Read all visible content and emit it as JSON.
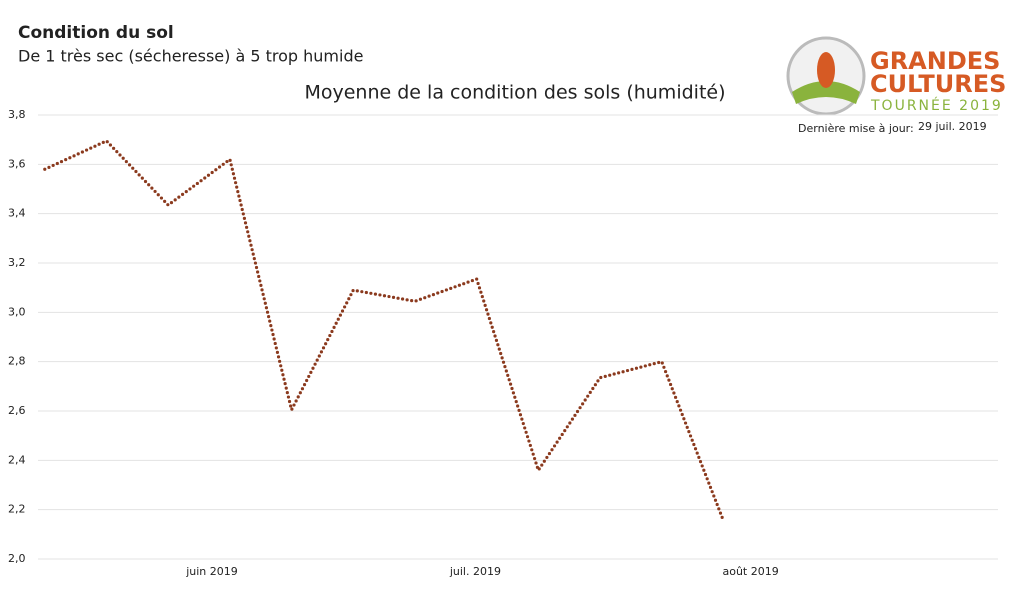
{
  "chart_data": {
    "type": "line",
    "title": "Condition du sol",
    "subtitle": "De 1 très sec (sécheresse) à 5 trop humide",
    "chart_title": "Moyenne de la condition des sols (humidité)",
    "annotations": [
      "GRANDES",
      "CULTURES",
      "TOURNÉE 2019",
      "Dernière mise à jour:",
      "29 juil. 2019"
    ],
    "x": [
      0,
      1,
      2,
      3,
      4,
      5,
      6,
      7,
      8,
      9,
      10,
      11
    ],
    "xlim": [
      -0.11,
      15.45
    ],
    "xticks": [
      {
        "value": 2.71,
        "label": "juin 2019"
      },
      {
        "value": 6.98,
        "label": "juil. 2019"
      },
      {
        "value": 11.44,
        "label": "août 2019"
      }
    ],
    "series": [
      {
        "name": "Moyenne",
        "color": "#8b3a1e",
        "values": [
          3.58,
          3.695,
          3.435,
          3.62,
          2.605,
          3.09,
          3.045,
          3.135,
          2.36,
          2.735,
          2.8,
          2.155
        ]
      }
    ],
    "ylim": [
      2.0,
      3.8
    ],
    "yticks": [
      {
        "value": 2.0,
        "label": "2,0"
      },
      {
        "value": 2.2,
        "label": "2,2"
      },
      {
        "value": 2.4,
        "label": "2,4"
      },
      {
        "value": 2.6,
        "label": "2,6"
      },
      {
        "value": 2.8,
        "label": "2,8"
      },
      {
        "value": 3.0,
        "label": "3,0"
      },
      {
        "value": 3.2,
        "label": "3,2"
      },
      {
        "value": 3.4,
        "label": "3,4"
      },
      {
        "value": 3.6,
        "label": "3,6"
      },
      {
        "value": 3.8,
        "label": "3,8"
      }
    ],
    "grid": true
  }
}
